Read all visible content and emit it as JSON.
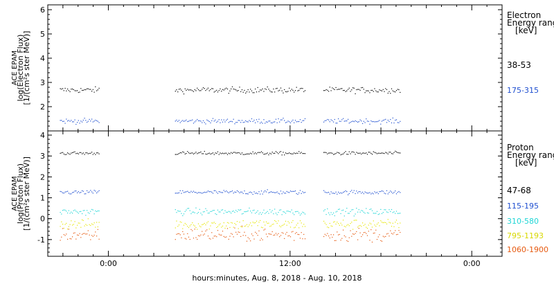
{
  "x_axis": {
    "title": "hours:minutes, Aug.  8, 2018 - Aug. 10, 2018",
    "ticks": [
      {
        "t": 0,
        "label": "0:00"
      },
      {
        "t": 12,
        "label": "12:00"
      },
      {
        "t": 24,
        "label": "0:00"
      }
    ],
    "range": [
      -4,
      26
    ]
  },
  "panels": [
    {
      "ylabel_lines": [
        "ACE EPAM",
        "log(Electron Flux)",
        "[1/(cm²s ster MeV)]"
      ],
      "legend_title": [
        "Electron",
        "Energy range",
        "[keV]"
      ],
      "ylim": [
        1,
        6.2
      ],
      "yticks": [
        2,
        3,
        4,
        5,
        6
      ],
      "series_labels": [
        "38-53",
        "175-315"
      ]
    },
    {
      "ylabel_lines": [
        "ACE EPAM",
        "log(Proton Flux)",
        "[1/(cm²s ster MeV)]"
      ],
      "legend_title": [
        "Proton",
        "Energy range",
        "[keV]"
      ],
      "ylim": [
        -1.8,
        4.2
      ],
      "yticks": [
        -1,
        0,
        1,
        2,
        3,
        4
      ],
      "series_labels": [
        "47-68",
        "115-195",
        "310-580",
        "795-1193",
        "1060-1900"
      ]
    }
  ],
  "chart_data": [
    {
      "type": "scatter",
      "title": "",
      "xlabel": "hours:minutes, Aug.  8, 2018 - Aug. 10, 2018",
      "ylabel": "ACE EPAM log(Electron Flux) [1/(cm²s ster MeV)]",
      "xlim": [
        -4,
        26
      ],
      "ylim": [
        1,
        6.2
      ],
      "grid": false,
      "legend_position": "right",
      "data_intervals_hours": [
        [
          -3.2,
          -0.6
        ],
        [
          4.4,
          13.0
        ],
        [
          14.2,
          19.3
        ]
      ],
      "series": [
        {
          "name": "38-53",
          "color": "#000000",
          "mean": 2.7,
          "spread": 0.06
        },
        {
          "name": "175-315",
          "color": "#1f4fd0",
          "mean": 1.42,
          "spread": 0.05
        }
      ]
    },
    {
      "type": "scatter",
      "title": "",
      "xlabel": "hours:minutes, Aug.  8, 2018 - Aug. 10, 2018",
      "ylabel": "ACE EPAM log(Proton Flux) [1/(cm²s ster MeV)]",
      "xlim": [
        -4,
        26
      ],
      "ylim": [
        -1.8,
        4.2
      ],
      "grid": false,
      "legend_position": "right",
      "data_intervals_hours": [
        [
          -3.2,
          -0.6
        ],
        [
          4.4,
          13.0
        ],
        [
          14.2,
          19.3
        ]
      ],
      "series": [
        {
          "name": "47-68",
          "color": "#000000",
          "mean": 3.15,
          "spread": 0.04
        },
        {
          "name": "115-195",
          "color": "#1f4fd0",
          "mean": 1.28,
          "spread": 0.05
        },
        {
          "name": "310-580",
          "color": "#1fd6d6",
          "mean": 0.35,
          "spread": 0.08
        },
        {
          "name": "795-1193",
          "color": "#e6e600",
          "mean": -0.25,
          "spread": 0.12
        },
        {
          "name": "1060-1900",
          "color": "#e65a10",
          "mean": -0.75,
          "spread": 0.16
        }
      ]
    }
  ]
}
